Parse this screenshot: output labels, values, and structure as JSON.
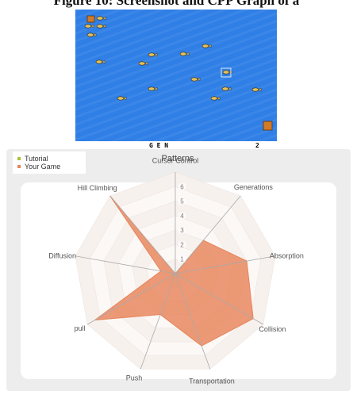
{
  "figure_title": "Figure 10: Screenshot and CPP Graph of a",
  "game": {
    "hud_left": "G E N",
    "hud_right": "2",
    "colors": {
      "water": "#2f7fe6",
      "fish": "#e0c060",
      "crate": "#d07a2a"
    },
    "icons": [
      "fish-sprite-icon",
      "crate-icon",
      "selection-box-icon"
    ]
  },
  "chart_data": {
    "type": "radar",
    "title": "Patterns",
    "axes": [
      "Cursor Control",
      "Generations",
      "Absorption",
      "Collision",
      "Transportation",
      "Push",
      "pull",
      "Diffusion",
      "Hill Climbing"
    ],
    "rlim": [
      0,
      7
    ],
    "tick_labels": [
      "1",
      "2",
      "3",
      "4",
      "5",
      "6"
    ],
    "series": [
      {
        "name": "Tutorial",
        "color": "#a8c43a",
        "values": [
          0,
          0,
          0,
          0,
          0,
          0,
          0,
          0,
          0
        ]
      },
      {
        "name": "Your Game",
        "color": "#e8845a",
        "values": [
          0,
          3,
          5,
          6.2,
          5.3,
          3,
          6.4,
          1,
          7
        ]
      }
    ],
    "legend_position": "top-left",
    "grid": true
  }
}
